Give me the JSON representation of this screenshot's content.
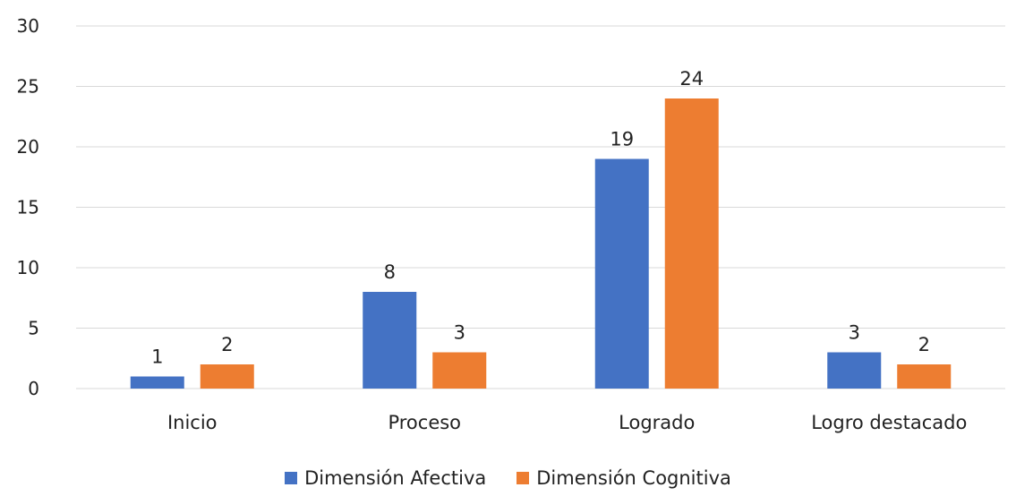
{
  "chart_data": {
    "type": "bar",
    "categories": [
      "Inicio",
      "Proceso",
      "Logrado",
      "Logro destacado"
    ],
    "series": [
      {
        "name": "Dimensión Afectiva",
        "values": [
          1,
          8,
          19,
          3
        ],
        "color": "#4472C4"
      },
      {
        "name": "Dimensión Cognitiva",
        "values": [
          2,
          3,
          24,
          2
        ],
        "color": "#ED7D31"
      }
    ],
    "yticks": [
      "0",
      "5",
      "10",
      "15",
      "20",
      "25",
      "30"
    ],
    "ylim": [
      0,
      30
    ],
    "grid": true,
    "legend": "bottom"
  }
}
